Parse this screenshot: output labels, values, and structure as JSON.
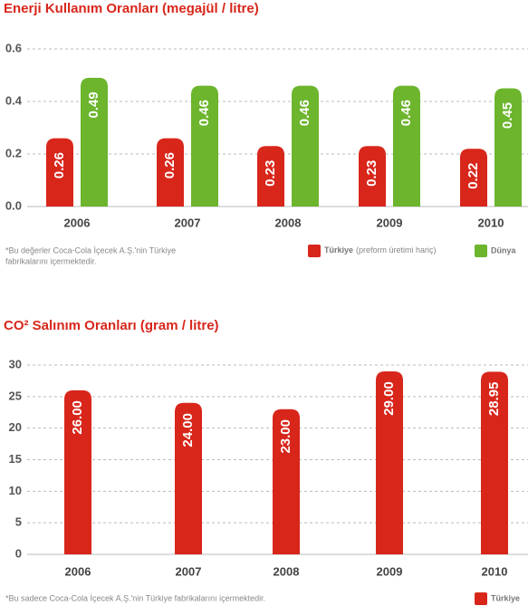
{
  "chart_data": [
    {
      "type": "bar",
      "title": "Enerji Kullanım Oranları (megajül / litre)",
      "categories": [
        "2006",
        "2007",
        "2008",
        "2009",
        "2010"
      ],
      "series": [
        {
          "name": "Türkiye",
          "color": "#d8261b",
          "values": [
            0.26,
            0.26,
            0.23,
            0.23,
            0.22
          ]
        },
        {
          "name": "Dünya",
          "color": "#6cb52d",
          "values": [
            0.49,
            0.46,
            0.46,
            0.46,
            0.45
          ]
        }
      ],
      "legend_note": "(preform üretimi hariç)",
      "note": [
        "*Bu değerler Coca-Cola İçecek A.Ş.'nin Türkiye",
        "fabrikalarını içermektedir."
      ],
      "ylim": [
        0,
        0.6
      ],
      "yticks": [
        {
          "value": 0,
          "label": "0.0"
        },
        0.2,
        0.4,
        0.6
      ],
      "grid": true
    },
    {
      "type": "bar",
      "title": "CO² Salınım Oranları (gram / litre)",
      "categories": [
        "2006",
        "2007",
        "2008",
        "2009",
        "2010"
      ],
      "series": [
        {
          "name": "Türkiye",
          "color": "#d8261b",
          "values": [
            26,
            24,
            23,
            29,
            28.95
          ],
          "value_labels": [
            "26.00",
            "24.00",
            "23.00",
            "29.00",
            "28.95"
          ]
        }
      ],
      "note": [
        "*Bu sadece Coca-Cola İçecek A.Ş.'nin Türkiye fabrikalarını içermektedir."
      ],
      "ylim": [
        0,
        30
      ],
      "yticks": [
        0,
        5,
        10,
        15,
        20,
        25,
        30
      ],
      "grid": true
    }
  ]
}
